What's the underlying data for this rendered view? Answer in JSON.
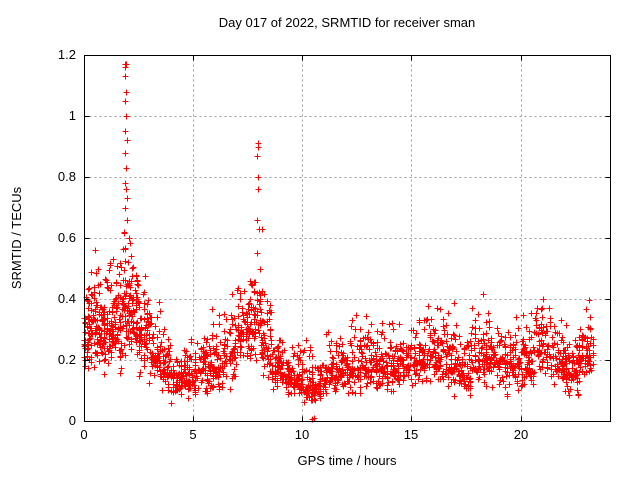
{
  "page": {
    "background": "#ffffff"
  },
  "chart_data": {
    "type": "scatter",
    "title": "Day 017 of 2022, SRMTID for receiver sman",
    "xlabel": "GPS time / hours",
    "ylabel": "SRMTID / TECUs",
    "xlim": [
      0,
      24.1
    ],
    "ylim": [
      0,
      1.2
    ],
    "xticks": {
      "values": [
        0,
        5,
        10,
        15,
        20
      ],
      "labels": [
        "0",
        "5",
        "10",
        "15",
        "20"
      ]
    },
    "yticks": {
      "values": [
        0,
        0.2,
        0.4,
        0.6,
        0.8,
        1,
        1.2
      ],
      "labels": [
        "0",
        "0.2",
        "0.4",
        "0.6",
        "0.8",
        "1",
        "1.2"
      ]
    },
    "grid": true,
    "grid_color": "#9b9b9b",
    "border_color": "#000000",
    "legend": "none",
    "marker": {
      "shape": "plus",
      "color": "#ff0000",
      "size": 7
    },
    "seed": 42,
    "epoch_step_hours": 0.033333,
    "band_profile_format": "[x_start, x_end, n_points, y_min, y_max, y_mean] — dense noisy band of SRMTID values read from the plot",
    "band_profile": [
      [
        0.0,
        0.3,
        45,
        0.15,
        0.5,
        0.27
      ],
      [
        0.3,
        0.7,
        55,
        0.15,
        0.62,
        0.3
      ],
      [
        0.7,
        1.0,
        50,
        0.14,
        0.5,
        0.28
      ],
      [
        1.0,
        1.4,
        55,
        0.12,
        0.55,
        0.3
      ],
      [
        1.4,
        1.8,
        55,
        0.15,
        0.58,
        0.33
      ],
      [
        1.8,
        2.1,
        50,
        0.15,
        0.75,
        0.38
      ],
      [
        2.1,
        2.5,
        55,
        0.18,
        0.6,
        0.37
      ],
      [
        2.5,
        3.0,
        60,
        0.12,
        0.5,
        0.28
      ],
      [
        3.0,
        3.5,
        55,
        0.1,
        0.42,
        0.22
      ],
      [
        3.5,
        4.0,
        55,
        0.08,
        0.36,
        0.17
      ],
      [
        4.0,
        4.6,
        60,
        0.04,
        0.25,
        0.13
      ],
      [
        4.6,
        5.2,
        60,
        0.05,
        0.28,
        0.14
      ],
      [
        5.2,
        5.8,
        60,
        0.07,
        0.33,
        0.17
      ],
      [
        5.8,
        6.4,
        60,
        0.08,
        0.38,
        0.18
      ],
      [
        6.4,
        7.0,
        60,
        0.1,
        0.42,
        0.22
      ],
      [
        7.0,
        7.6,
        65,
        0.15,
        0.47,
        0.3
      ],
      [
        7.6,
        8.1,
        55,
        0.16,
        0.55,
        0.33
      ],
      [
        8.1,
        8.6,
        55,
        0.12,
        0.45,
        0.24
      ],
      [
        8.6,
        9.2,
        60,
        0.09,
        0.3,
        0.17
      ],
      [
        9.2,
        9.8,
        60,
        0.07,
        0.26,
        0.14
      ],
      [
        9.8,
        10.4,
        60,
        0.05,
        0.33,
        0.12
      ],
      [
        10.4,
        11.0,
        60,
        0.04,
        0.22,
        0.11
      ],
      [
        11.0,
        11.6,
        60,
        0.07,
        0.3,
        0.15
      ],
      [
        11.6,
        12.2,
        60,
        0.08,
        0.33,
        0.17
      ],
      [
        12.2,
        12.9,
        65,
        0.08,
        0.38,
        0.18
      ],
      [
        12.9,
        13.6,
        65,
        0.09,
        0.36,
        0.18
      ],
      [
        13.6,
        14.3,
        65,
        0.08,
        0.38,
        0.18
      ],
      [
        14.3,
        15.0,
        65,
        0.1,
        0.32,
        0.18
      ],
      [
        15.0,
        15.7,
        65,
        0.1,
        0.4,
        0.2
      ],
      [
        15.7,
        16.4,
        65,
        0.1,
        0.42,
        0.21
      ],
      [
        16.4,
        17.1,
        65,
        0.08,
        0.4,
        0.18
      ],
      [
        17.1,
        17.8,
        65,
        0.06,
        0.35,
        0.17
      ],
      [
        17.8,
        18.5,
        65,
        0.1,
        0.42,
        0.22
      ],
      [
        18.5,
        19.2,
        65,
        0.1,
        0.36,
        0.2
      ],
      [
        19.2,
        19.9,
        65,
        0.08,
        0.35,
        0.18
      ],
      [
        19.9,
        20.6,
        65,
        0.08,
        0.36,
        0.18
      ],
      [
        20.6,
        21.4,
        70,
        0.12,
        0.44,
        0.25
      ],
      [
        21.4,
        22.1,
        65,
        0.09,
        0.36,
        0.19
      ],
      [
        22.1,
        22.7,
        60,
        0.07,
        0.33,
        0.17
      ],
      [
        22.7,
        23.35,
        60,
        0.12,
        0.42,
        0.22
      ]
    ],
    "outlier_points_format": "[x_hours, y_TECUs] — individually visible spike / stray points",
    "outlier_points": [
      [
        1.85,
        0.62
      ],
      [
        1.87,
        0.7
      ],
      [
        1.88,
        0.88
      ],
      [
        1.88,
        1.17
      ],
      [
        1.89,
        1.05
      ],
      [
        1.9,
        1.16
      ],
      [
        1.9,
        1.13
      ],
      [
        1.9,
        0.95
      ],
      [
        1.9,
        0.78
      ],
      [
        1.91,
        1.08
      ],
      [
        1.92,
        1.17
      ],
      [
        1.92,
        0.83
      ],
      [
        1.93,
        1.0
      ],
      [
        1.94,
        0.76
      ],
      [
        1.95,
        0.92
      ],
      [
        1.96,
        0.66
      ],
      [
        1.98,
        0.73
      ],
      [
        2.05,
        0.6
      ],
      [
        7.92,
        0.55
      ],
      [
        7.93,
        0.87
      ],
      [
        7.94,
        0.66
      ],
      [
        7.95,
        0.91
      ],
      [
        7.96,
        0.8
      ],
      [
        7.97,
        0.9
      ],
      [
        7.98,
        0.76
      ],
      [
        8.0,
        0.63
      ],
      [
        8.05,
        0.5
      ],
      [
        8.17,
        0.63
      ],
      [
        10.45,
        0.005
      ],
      [
        10.52,
        0.01
      ]
    ]
  }
}
